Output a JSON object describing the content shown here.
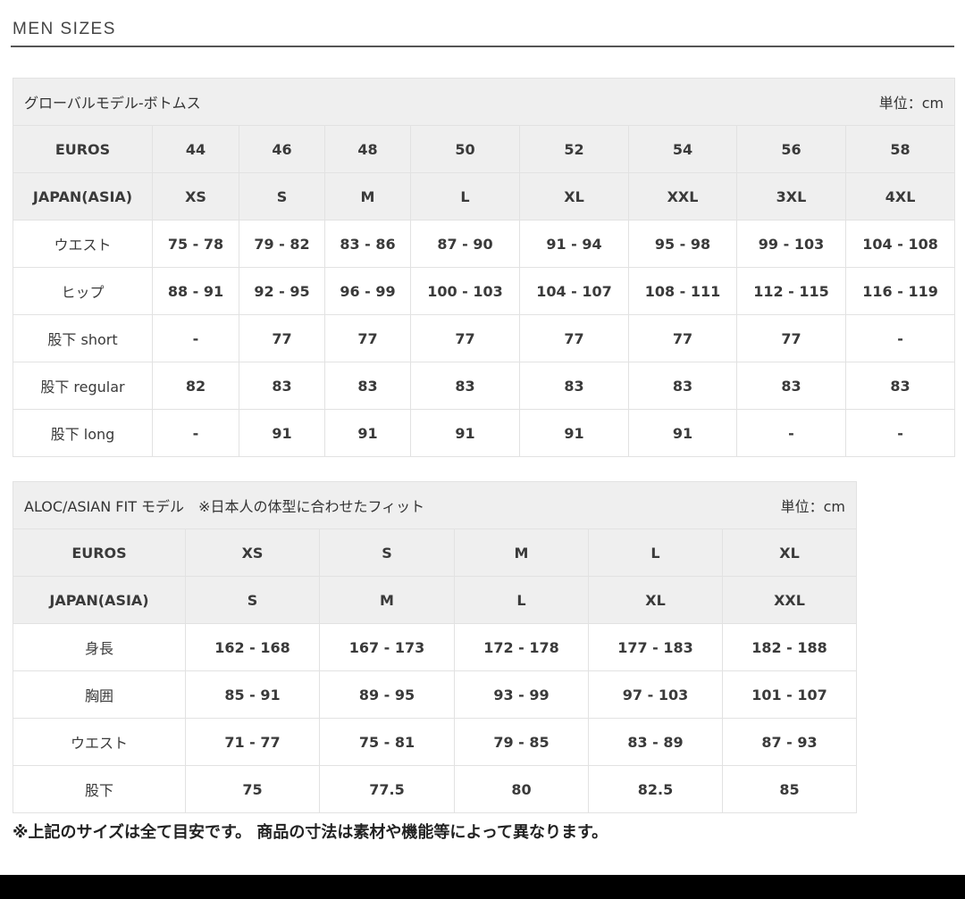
{
  "title": "MEN SIZES",
  "tables": [
    {
      "caption": "グローバルモデル-ボトムス",
      "unit": "単位：cm",
      "header_rows": [
        [
          "EUROS",
          "44",
          "46",
          "48",
          "50",
          "52",
          "54",
          "56",
          "58"
        ],
        [
          "JAPAN(ASIA)",
          "XS",
          "S",
          "M",
          "L",
          "XL",
          "XXL",
          "3XL",
          "4XL"
        ]
      ],
      "rows": [
        [
          "ウエスト",
          "75 - 78",
          "79 - 82",
          "83 - 86",
          "87 - 90",
          "91 - 94",
          "95 - 98",
          "99 - 103",
          "104 - 108"
        ],
        [
          "ヒップ",
          "88 - 91",
          "92 - 95",
          "96 - 99",
          "100 - 103",
          "104 - 107",
          "108 - 111",
          "112 - 115",
          "116 - 119"
        ],
        [
          "股下 short",
          "-",
          "77",
          "77",
          "77",
          "77",
          "77",
          "77",
          "-"
        ],
        [
          "股下 regular",
          "82",
          "83",
          "83",
          "83",
          "83",
          "83",
          "83",
          "83"
        ],
        [
          "股下 long",
          "-",
          "91",
          "91",
          "91",
          "91",
          "91",
          "-",
          "-"
        ]
      ]
    },
    {
      "caption": "ALOC/ASIAN FIT モデル　※日本人の体型に合わせたフィット",
      "unit": "単位：cm",
      "header_rows": [
        [
          "EUROS",
          "XS",
          "S",
          "M",
          "L",
          "XL"
        ],
        [
          "JAPAN(ASIA)",
          "S",
          "M",
          "L",
          "XL",
          "XXL"
        ]
      ],
      "rows": [
        [
          "身長",
          "162 - 168",
          "167 - 173",
          "172 - 178",
          "177 - 183",
          "182 - 188"
        ],
        [
          "胸囲",
          "85 - 91",
          "89 - 95",
          "93 - 99",
          "97 - 103",
          "101 - 107"
        ],
        [
          "ウエスト",
          "71 - 77",
          "75 - 81",
          "79 - 85",
          "83 - 89",
          "87 - 93"
        ],
        [
          "股下",
          "75",
          "77.5",
          "80",
          "82.5",
          "85"
        ]
      ]
    }
  ],
  "note": "※上記のサイズは全て目安です。 商品の寸法は素材や機能等によって異なります。"
}
